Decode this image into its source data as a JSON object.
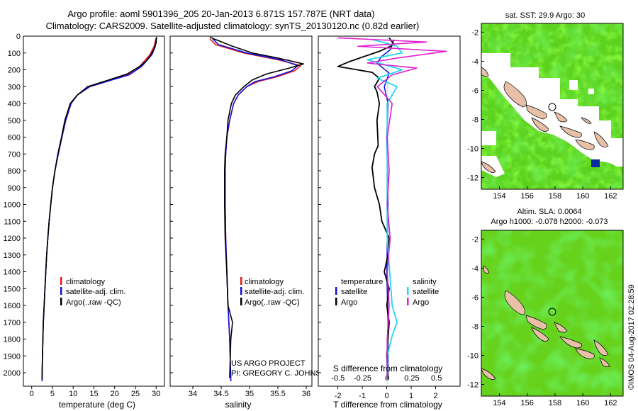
{
  "header": {
    "line1": "Argo profile: aoml 5901396_205 20-Jan-2013 6.871S 157.787E (NRT data)",
    "line2": "Climatology: CARS2009. Satellite-adjusted climatology: synTS_20130120.nc (0.82d earlier)"
  },
  "credit": "©IMOS 04-Aug-2017 02:28:59",
  "project": {
    "line1": "US ARGO PROJECT",
    "line2": "PI: GREGORY C. JOHNSON"
  },
  "colors": {
    "climatology": "#e8191b",
    "satellite": "#1010e0",
    "argo": "#000000",
    "t_sat": "#1010e0",
    "s_sat": "#22d8f0",
    "s_argo": "#e020d0",
    "land": "#e8c0a8"
  },
  "chart_data": [
    {
      "type": "line",
      "title": "",
      "xlabel": "temperature (deg C)",
      "ylabel": "",
      "xlim": [
        -2,
        32
      ],
      "ylim": [
        2080,
        0
      ],
      "xticks": [
        0,
        5,
        10,
        15,
        20,
        25,
        30
      ],
      "yticks": [
        0,
        100,
        200,
        300,
        400,
        500,
        600,
        700,
        800,
        900,
        1000,
        1100,
        1200,
        1300,
        1400,
        1500,
        1600,
        1700,
        1800,
        1900,
        2000
      ],
      "legend": [
        "climatology",
        "satellite-adj. clim.",
        "Argo(..raw -QC)"
      ],
      "series": [
        {
          "name": "climatology",
          "points": [
            [
              30,
              10
            ],
            [
              29.5,
              60
            ],
            [
              28.5,
              110
            ],
            [
              26,
              180
            ],
            [
              23,
              230
            ],
            [
              18,
              270
            ],
            [
              14,
              300
            ],
            [
              11,
              350
            ],
            [
              9.5,
              400
            ],
            [
              8.2,
              500
            ],
            [
              7.3,
              600
            ],
            [
              6.4,
              700
            ],
            [
              5.6,
              800
            ],
            [
              5,
              900
            ],
            [
              4.6,
              1000
            ],
            [
              4.2,
              1100
            ],
            [
              3.9,
              1200
            ],
            [
              3.6,
              1300
            ],
            [
              3.4,
              1400
            ],
            [
              3.2,
              1500
            ],
            [
              3,
              1600
            ],
            [
              2.8,
              1700
            ],
            [
              2.7,
              1800
            ],
            [
              2.6,
              1900
            ],
            [
              2.5,
              2050
            ]
          ]
        },
        {
          "name": "satellite-adj. clim.",
          "points": [
            [
              30,
              10
            ],
            [
              29.8,
              60
            ],
            [
              29,
              110
            ],
            [
              26.5,
              180
            ],
            [
              23.5,
              230
            ],
            [
              18,
              270
            ],
            [
              14,
              300
            ],
            [
              11,
              350
            ],
            [
              9.5,
              400
            ],
            [
              8.2,
              500
            ],
            [
              7.3,
              600
            ],
            [
              6.4,
              700
            ],
            [
              5.6,
              800
            ],
            [
              5,
              900
            ],
            [
              4.6,
              1000
            ],
            [
              4.2,
              1100
            ],
            [
              3.9,
              1200
            ],
            [
              3.6,
              1300
            ],
            [
              3.4,
              1400
            ],
            [
              3.2,
              1500
            ],
            [
              3,
              1600
            ],
            [
              2.8,
              1700
            ],
            [
              2.7,
              1800
            ],
            [
              2.6,
              1900
            ],
            [
              2.5,
              2050
            ]
          ]
        },
        {
          "name": "Argo(..raw -QC)",
          "points": [
            [
              30.1,
              5
            ],
            [
              30,
              40
            ],
            [
              29.4,
              80
            ],
            [
              28.5,
              120
            ],
            [
              27.5,
              150
            ],
            [
              26,
              180
            ],
            [
              23,
              225
            ],
            [
              18,
              265
            ],
            [
              13.5,
              300
            ],
            [
              11,
              350
            ],
            [
              9.3,
              400
            ],
            [
              8,
              500
            ],
            [
              7.2,
              600
            ],
            [
              6.3,
              700
            ],
            [
              5.6,
              800
            ],
            [
              5,
              900
            ],
            [
              4.6,
              1000
            ],
            [
              4.2,
              1100
            ],
            [
              3.9,
              1200
            ],
            [
              3.6,
              1300
            ],
            [
              3.4,
              1400
            ],
            [
              3.2,
              1500
            ],
            [
              3,
              1600
            ],
            [
              2.8,
              1700
            ],
            [
              2.7,
              1800
            ],
            [
              2.6,
              1900
            ],
            [
              2.5,
              2040
            ]
          ]
        }
      ]
    },
    {
      "type": "line",
      "title": "",
      "xlabel": "salinity",
      "ylabel": "",
      "xlim": [
        33.6,
        36.1
      ],
      "ylim": [
        2080,
        0
      ],
      "xticks": [
        34,
        34.5,
        35,
        35.5,
        36
      ],
      "legend": [
        "climatology",
        "satellite-adj. clim.",
        "Argo(..raw -QC)"
      ],
      "series": [
        {
          "name": "climatology",
          "points": [
            [
              34.3,
              15
            ],
            [
              34.4,
              50
            ],
            [
              34.9,
              100
            ],
            [
              35.5,
              140
            ],
            [
              35.9,
              175
            ],
            [
              35.8,
              205
            ],
            [
              35.5,
              240
            ],
            [
              35.15,
              270
            ],
            [
              34.95,
              300
            ],
            [
              34.8,
              350
            ],
            [
              34.72,
              400
            ],
            [
              34.65,
              500
            ],
            [
              34.6,
              600
            ],
            [
              34.58,
              700
            ],
            [
              34.57,
              800
            ],
            [
              34.57,
              1000
            ],
            [
              34.58,
              1200
            ],
            [
              34.6,
              1400
            ],
            [
              34.62,
              1600
            ],
            [
              34.65,
              1800
            ],
            [
              34.67,
              2050
            ]
          ]
        },
        {
          "name": "satellite-adj. clim.",
          "points": [
            [
              34.35,
              15
            ],
            [
              34.45,
              50
            ],
            [
              34.95,
              100
            ],
            [
              35.55,
              140
            ],
            [
              35.85,
              175
            ],
            [
              35.75,
              205
            ],
            [
              35.45,
              240
            ],
            [
              35.1,
              270
            ],
            [
              34.95,
              300
            ],
            [
              34.8,
              350
            ],
            [
              34.72,
              400
            ],
            [
              34.65,
              500
            ],
            [
              34.6,
              600
            ],
            [
              34.58,
              700
            ],
            [
              34.57,
              800
            ],
            [
              34.57,
              1000
            ],
            [
              34.58,
              1200
            ],
            [
              34.6,
              1400
            ],
            [
              34.62,
              1600
            ],
            [
              34.65,
              1800
            ],
            [
              34.67,
              2050
            ]
          ]
        },
        {
          "name": "Argo(..raw -QC)",
          "points": [
            [
              34.3,
              5
            ],
            [
              34.4,
              20
            ],
            [
              34.7,
              60
            ],
            [
              35.05,
              100
            ],
            [
              35.5,
              130
            ],
            [
              35.95,
              165
            ],
            [
              35.7,
              190
            ],
            [
              35.3,
              225
            ],
            [
              35.05,
              260
            ],
            [
              34.9,
              300
            ],
            [
              34.75,
              350
            ],
            [
              34.68,
              400
            ],
            [
              34.62,
              500
            ],
            [
              34.6,
              600
            ],
            [
              34.57,
              700
            ],
            [
              34.56,
              800
            ],
            [
              34.56,
              1000
            ],
            [
              34.57,
              1200
            ],
            [
              34.6,
              1400
            ],
            [
              34.62,
              1600
            ],
            [
              34.7,
              1700
            ],
            [
              34.67,
              1800
            ],
            [
              34.65,
              2030
            ]
          ]
        }
      ]
    },
    {
      "type": "line",
      "title": "",
      "xlabel": "T difference from climatology",
      "xlabel_top": "S difference from climatology",
      "xlim": [
        -2.8,
        3.0
      ],
      "ylim": [
        2080,
        0
      ],
      "xticks": [
        -2,
        -1,
        0,
        1,
        2
      ],
      "xticks_salinity": [
        -0.5,
        -0.25,
        0,
        0.25,
        0.5
      ],
      "legend_groups": [
        {
          "title": "temperature",
          "items": [
            "satellite",
            "Argo"
          ]
        },
        {
          "title": "salinity",
          "items": [
            "satellite",
            "Argo"
          ]
        }
      ],
      "series": [
        {
          "name": "temperature satellite",
          "points": [
            [
              0.3,
              20
            ],
            [
              0.15,
              80
            ],
            [
              -0.2,
              120
            ],
            [
              -0.4,
              160
            ],
            [
              0.1,
              220
            ],
            [
              -0.1,
              300
            ],
            [
              0.05,
              400
            ],
            [
              0,
              600
            ],
            [
              0.05,
              1000
            ],
            [
              0,
              1400
            ],
            [
              0.05,
              1700
            ],
            [
              0.05,
              2040
            ]
          ]
        },
        {
          "name": "temperature Argo",
          "points": [
            [
              0.1,
              10
            ],
            [
              0.3,
              50
            ],
            [
              -0.3,
              90
            ],
            [
              -1.5,
              150
            ],
            [
              -2,
              180
            ],
            [
              -0.6,
              215
            ],
            [
              -0.3,
              250
            ],
            [
              -0.5,
              300
            ],
            [
              -0.4,
              330
            ],
            [
              -0.3,
              400
            ],
            [
              -0.4,
              500
            ],
            [
              -0.35,
              650
            ],
            [
              -0.5,
              700
            ],
            [
              -0.6,
              780
            ],
            [
              -0.5,
              900
            ],
            [
              -0.3,
              1000
            ],
            [
              -0.2,
              1100
            ],
            [
              0.1,
              1200
            ],
            [
              0.05,
              1300
            ],
            [
              -0.1,
              1400
            ],
            [
              0.1,
              1500
            ],
            [
              0,
              1600
            ],
            [
              0.1,
              1700
            ],
            [
              0.05,
              1800
            ],
            [
              0,
              1900
            ],
            [
              0.05,
              2040
            ]
          ]
        },
        {
          "name": "salinity satellite",
          "points": [
            [
              -0.15,
              20
            ],
            [
              0.1,
              60
            ],
            [
              0.15,
              100
            ],
            [
              -0.2,
              140
            ],
            [
              0.15,
              200
            ],
            [
              -0.1,
              250
            ],
            [
              0.1,
              300
            ],
            [
              0,
              400
            ],
            [
              0,
              1000
            ],
            [
              0,
              1200
            ],
            [
              0.05,
              1600
            ],
            [
              0.1,
              1700
            ],
            [
              0.05,
              1780
            ],
            [
              0,
              1900
            ],
            [
              0,
              2040
            ]
          ]
        },
        {
          "name": "salinity Argo",
          "points": [
            [
              -0.5,
              10
            ],
            [
              0.4,
              35
            ],
            [
              -0.3,
              60
            ],
            [
              0.6,
              90
            ],
            [
              0.1,
              130
            ],
            [
              -0.2,
              160
            ],
            [
              0.3,
              190
            ],
            [
              0.05,
              230
            ],
            [
              -0.1,
              300
            ],
            [
              0.05,
              400
            ],
            [
              0,
              600
            ],
            [
              0.02,
              800
            ],
            [
              0,
              1000
            ],
            [
              0.03,
              1200
            ],
            [
              0,
              1400
            ],
            [
              0.02,
              1600
            ],
            [
              0,
              1800
            ],
            [
              0,
              2040
            ]
          ]
        }
      ]
    },
    {
      "type": "heatmap",
      "title": "sat. SST: 29.9 Argo: 30",
      "xlim": [
        152.7,
        162.9
      ],
      "ylim": [
        -12.8,
        -1.4
      ],
      "xticks": [
        154,
        156,
        158,
        160,
        162
      ],
      "yticks": [
        -2,
        -4,
        -6,
        -8,
        -10,
        -12
      ],
      "marker": {
        "lon": 157.787,
        "lat": -6.871
      }
    },
    {
      "type": "heatmap",
      "title": "Altim. SLA: 0.0064",
      "subtitle": "Argo h1000: -0.078 h2000: -0.073",
      "xlim": [
        152.7,
        162.9
      ],
      "ylim": [
        -12.8,
        -1.4
      ],
      "xticks": [
        154,
        156,
        158,
        160,
        162
      ],
      "yticks": [
        -2,
        -4,
        -6,
        -8,
        -10,
        -12
      ],
      "marker": {
        "lon": 157.787,
        "lat": -6.871
      }
    }
  ]
}
